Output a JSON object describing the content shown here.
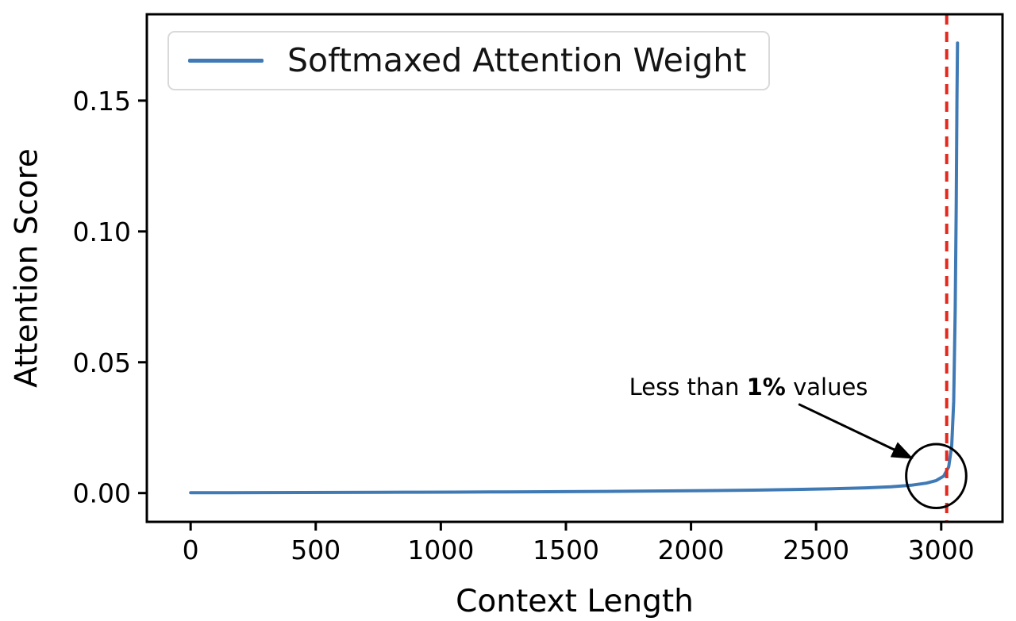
{
  "background": "#ffffff",
  "chart_data": {
    "type": "line",
    "title": "",
    "xlabel": "Context Length",
    "ylabel": "Attention Score",
    "xlim": [
      -175,
      3245
    ],
    "ylim": [
      -0.011,
      0.183
    ],
    "grid": false,
    "xticks": [
      {
        "v": 0,
        "label": "0"
      },
      {
        "v": 500,
        "label": "500"
      },
      {
        "v": 1000,
        "label": "1000"
      },
      {
        "v": 1500,
        "label": "1500"
      },
      {
        "v": 2000,
        "label": "2000"
      },
      {
        "v": 2500,
        "label": "2500"
      },
      {
        "v": 3000,
        "label": "3000"
      }
    ],
    "yticks": [
      {
        "v": 0.0,
        "label": "0.00"
      },
      {
        "v": 0.05,
        "label": "0.05"
      },
      {
        "v": 0.1,
        "label": "0.10"
      },
      {
        "v": 0.15,
        "label": "0.15"
      }
    ],
    "legend": {
      "position": "upper-left",
      "entries": [
        {
          "label": "Softmaxed Attention Weight",
          "color": "#3f7ab5"
        }
      ]
    },
    "series": [
      {
        "name": "Softmaxed Attention Weight",
        "color": "#3f7ab5",
        "x": [
          0,
          150,
          300,
          450,
          600,
          750,
          900,
          1050,
          1200,
          1350,
          1500,
          1650,
          1800,
          1950,
          2100,
          2250,
          2400,
          2550,
          2700,
          2800,
          2880,
          2940,
          2980,
          3010,
          3030,
          3042,
          3050,
          3056,
          3060,
          3063,
          3065
        ],
        "y": [
          0.00012,
          0.00015,
          0.00018,
          0.00021,
          0.00025,
          0.00029,
          0.00033,
          0.00038,
          0.00043,
          0.00049,
          0.00056,
          0.00064,
          0.00073,
          0.00084,
          0.00097,
          0.00113,
          0.00133,
          0.0016,
          0.002,
          0.0024,
          0.003,
          0.0038,
          0.0048,
          0.0065,
          0.01,
          0.018,
          0.035,
          0.07,
          0.11,
          0.15,
          0.172
        ]
      }
    ],
    "vline": {
      "x": 3022,
      "color": "#e3291d",
      "style": "dashed"
    },
    "annotation": {
      "text_before": "Less than ",
      "text_bold": "1%",
      "text_after": " values",
      "text_xy": [
        2230,
        0.0405
      ],
      "arrow_from": [
        2430,
        0.034
      ],
      "arrow_to": [
        2880,
        0.0135
      ],
      "circle_center": [
        2980,
        0.0065
      ],
      "circle_rx": 120,
      "circle_ry": 0.0122,
      "color": "#000000"
    }
  }
}
